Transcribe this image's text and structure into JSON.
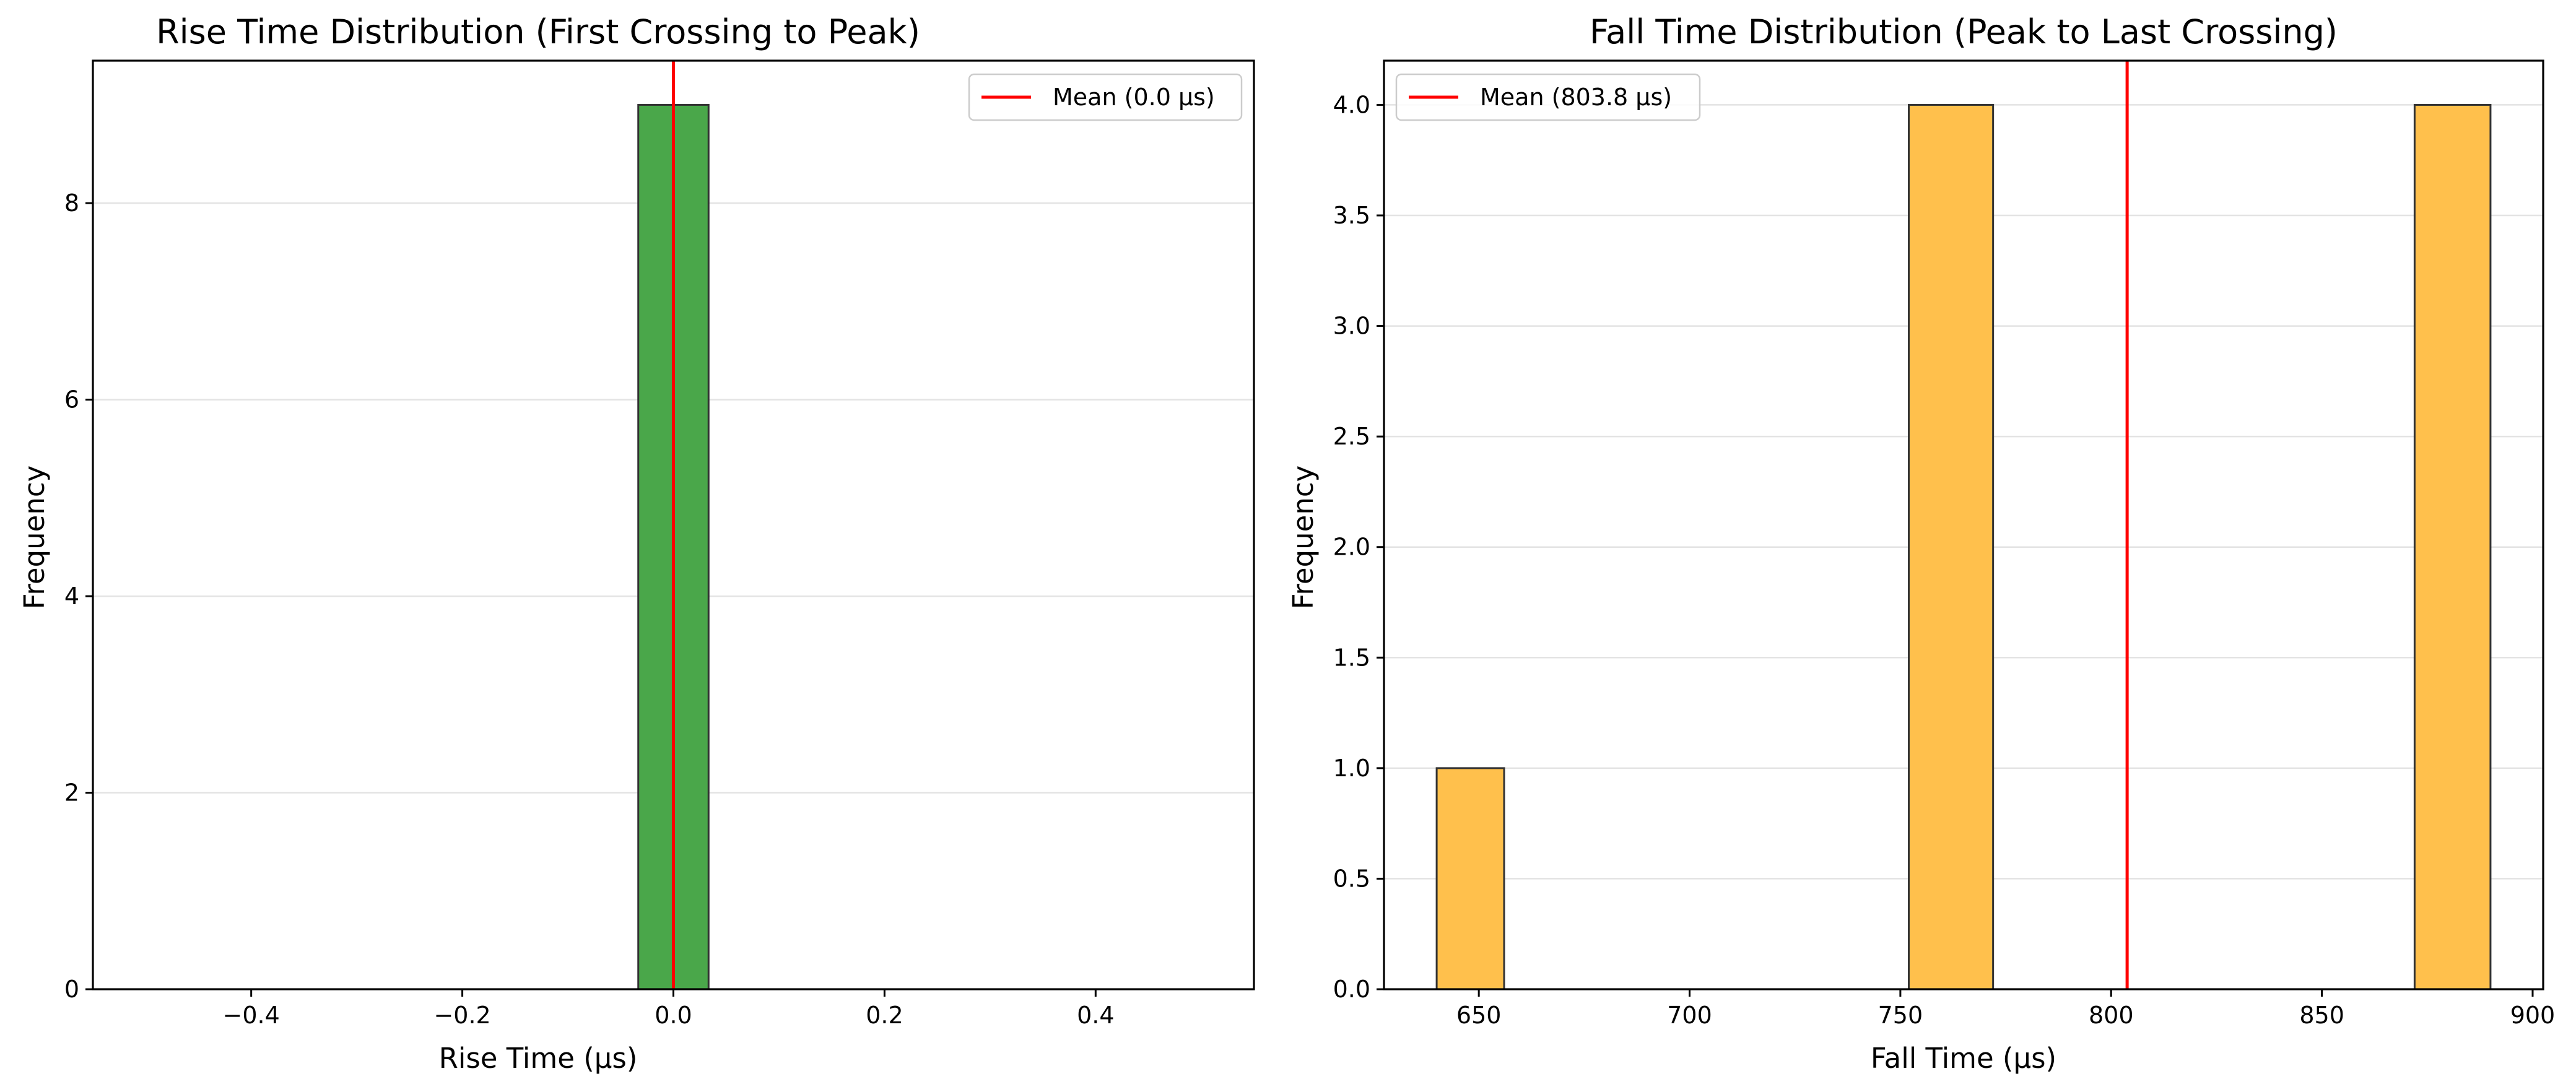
{
  "chart_data": [
    {
      "type": "bar",
      "title": "Rise Time Distribution (First Crossing to Peak)",
      "xlabel": "Rise Time (µs)",
      "ylabel": "Frequency",
      "xlim": [
        -0.55,
        0.55
      ],
      "ylim": [
        0,
        9.45
      ],
      "xticks": [
        -0.4,
        -0.2,
        0.0,
        0.2,
        0.4
      ],
      "xtick_labels": [
        "−0.4",
        "−0.2",
        "0.0",
        "0.2",
        "0.4"
      ],
      "yticks": [
        0,
        2,
        4,
        6,
        8
      ],
      "ytick_labels": [
        "0",
        "2",
        "4",
        "6",
        "8"
      ],
      "grid": "y",
      "legend": {
        "position": "top-right",
        "label": "Mean (0.0 µs)"
      },
      "color": "#4aa74a",
      "mean_line": {
        "x": 0.0,
        "color": "#ff0000"
      },
      "bins": [
        [
          -0.5,
          -0.4667,
          0
        ],
        [
          -0.4667,
          -0.4333,
          0
        ],
        [
          -0.4333,
          -0.4,
          0
        ],
        [
          -0.4,
          -0.3667,
          0
        ],
        [
          -0.3667,
          -0.3333,
          0
        ],
        [
          -0.3333,
          -0.3,
          0
        ],
        [
          -0.3,
          -0.2667,
          0
        ],
        [
          -0.2667,
          -0.2333,
          0
        ],
        [
          -0.2333,
          -0.2,
          0
        ],
        [
          -0.2,
          -0.1667,
          0
        ],
        [
          -0.1667,
          -0.1333,
          0
        ],
        [
          -0.1333,
          -0.1,
          0
        ],
        [
          -0.1,
          -0.0667,
          0
        ],
        [
          -0.0667,
          -0.0333,
          0
        ],
        [
          -0.0333,
          0.0333,
          9
        ],
        [
          0.0333,
          0.0667,
          0
        ],
        [
          0.0667,
          0.1,
          0
        ],
        [
          0.1,
          0.1333,
          0
        ],
        [
          0.1333,
          0.1667,
          0
        ],
        [
          0.1667,
          0.2,
          0
        ],
        [
          0.2,
          0.2333,
          0
        ],
        [
          0.2333,
          0.2667,
          0
        ],
        [
          0.2667,
          0.3,
          0
        ],
        [
          0.3,
          0.3333,
          0
        ],
        [
          0.3333,
          0.3667,
          0
        ],
        [
          0.3667,
          0.4,
          0
        ],
        [
          0.4,
          0.4333,
          0
        ],
        [
          0.4333,
          0.4667,
          0
        ],
        [
          0.4667,
          0.5,
          0
        ]
      ]
    },
    {
      "type": "bar",
      "title": "Fall Time Distribution (Peak to Last Crossing)",
      "xlabel": "Fall Time (µs)",
      "ylabel": "Frequency",
      "xlim": [
        627.5,
        902.5
      ],
      "ylim": [
        0,
        4.2
      ],
      "xticks": [
        650,
        700,
        750,
        800,
        850,
        900
      ],
      "xtick_labels": [
        "650",
        "700",
        "750",
        "800",
        "850",
        "900"
      ],
      "yticks": [
        0,
        0.5,
        1,
        1.5,
        2,
        2.5,
        3,
        3.5,
        4
      ],
      "ytick_labels": [
        "0.0",
        "0.5",
        "1.0",
        "1.5",
        "2.0",
        "2.5",
        "3.0",
        "3.5",
        "4.0"
      ],
      "grid": "y",
      "legend": {
        "position": "top-left",
        "label": "Mean (803.8 µs)"
      },
      "color": "#ffc04c",
      "mean_line": {
        "x": 803.8,
        "color": "#ff0000"
      },
      "bins": [
        [
          640,
          656,
          1
        ],
        [
          656,
          672,
          0
        ],
        [
          672,
          688,
          0
        ],
        [
          688,
          704,
          0
        ],
        [
          704,
          720,
          0
        ],
        [
          720,
          736,
          0
        ],
        [
          736,
          752,
          0
        ],
        [
          752,
          772,
          4
        ],
        [
          772,
          792,
          0
        ],
        [
          792,
          812,
          0
        ],
        [
          812,
          832,
          0
        ],
        [
          832,
          852,
          0
        ],
        [
          852,
          872,
          0
        ],
        [
          872,
          890,
          4
        ]
      ]
    }
  ]
}
